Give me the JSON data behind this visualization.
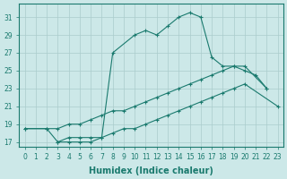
{
  "xlabel": "Humidex (Indice chaleur)",
  "series": {
    "top": {
      "x": [
        0,
        2,
        3,
        4,
        5,
        6,
        7,
        8,
        10,
        11,
        12,
        13,
        14,
        15,
        16,
        17,
        18,
        19,
        20,
        21,
        22
      ],
      "y": [
        18.5,
        18.5,
        17.0,
        17.0,
        17.0,
        17.0,
        17.5,
        27.0,
        29.0,
        29.5,
        29.0,
        30.0,
        31.0,
        31.5,
        31.0,
        26.5,
        25.5,
        25.5,
        25.0,
        24.5,
        23.0
      ]
    },
    "mid": {
      "x": [
        0,
        2,
        3,
        4,
        5,
        6,
        7,
        8,
        9,
        10,
        11,
        12,
        13,
        14,
        15,
        16,
        17,
        18,
        19,
        20,
        22
      ],
      "y": [
        18.5,
        18.5,
        18.5,
        19.0,
        19.0,
        19.5,
        20.0,
        20.5,
        20.5,
        21.0,
        21.5,
        22.0,
        22.5,
        23.0,
        23.5,
        24.0,
        24.5,
        25.0,
        25.5,
        25.5,
        23.0
      ]
    },
    "low": {
      "x": [
        3,
        4,
        5,
        6,
        7,
        8,
        9,
        10,
        11,
        12,
        13,
        14,
        15,
        16,
        17,
        18,
        19,
        20,
        23
      ],
      "y": [
        17.0,
        17.5,
        17.5,
        17.5,
        17.5,
        18.0,
        18.5,
        18.5,
        19.0,
        19.5,
        20.0,
        20.5,
        21.0,
        21.5,
        22.0,
        22.5,
        23.0,
        23.5,
        21.0
      ]
    }
  },
  "ylim": [
    16.5,
    32.5
  ],
  "xlim": [
    -0.5,
    23.5
  ],
  "yticks": [
    17,
    19,
    21,
    23,
    25,
    27,
    29,
    31
  ],
  "xticks": [
    0,
    1,
    2,
    3,
    4,
    5,
    6,
    7,
    8,
    9,
    10,
    11,
    12,
    13,
    14,
    15,
    16,
    17,
    18,
    19,
    20,
    21,
    22,
    23
  ],
  "line_color": "#1a7a6e",
  "bg_color": "#cce8e8",
  "grid_color": "#aacccc"
}
